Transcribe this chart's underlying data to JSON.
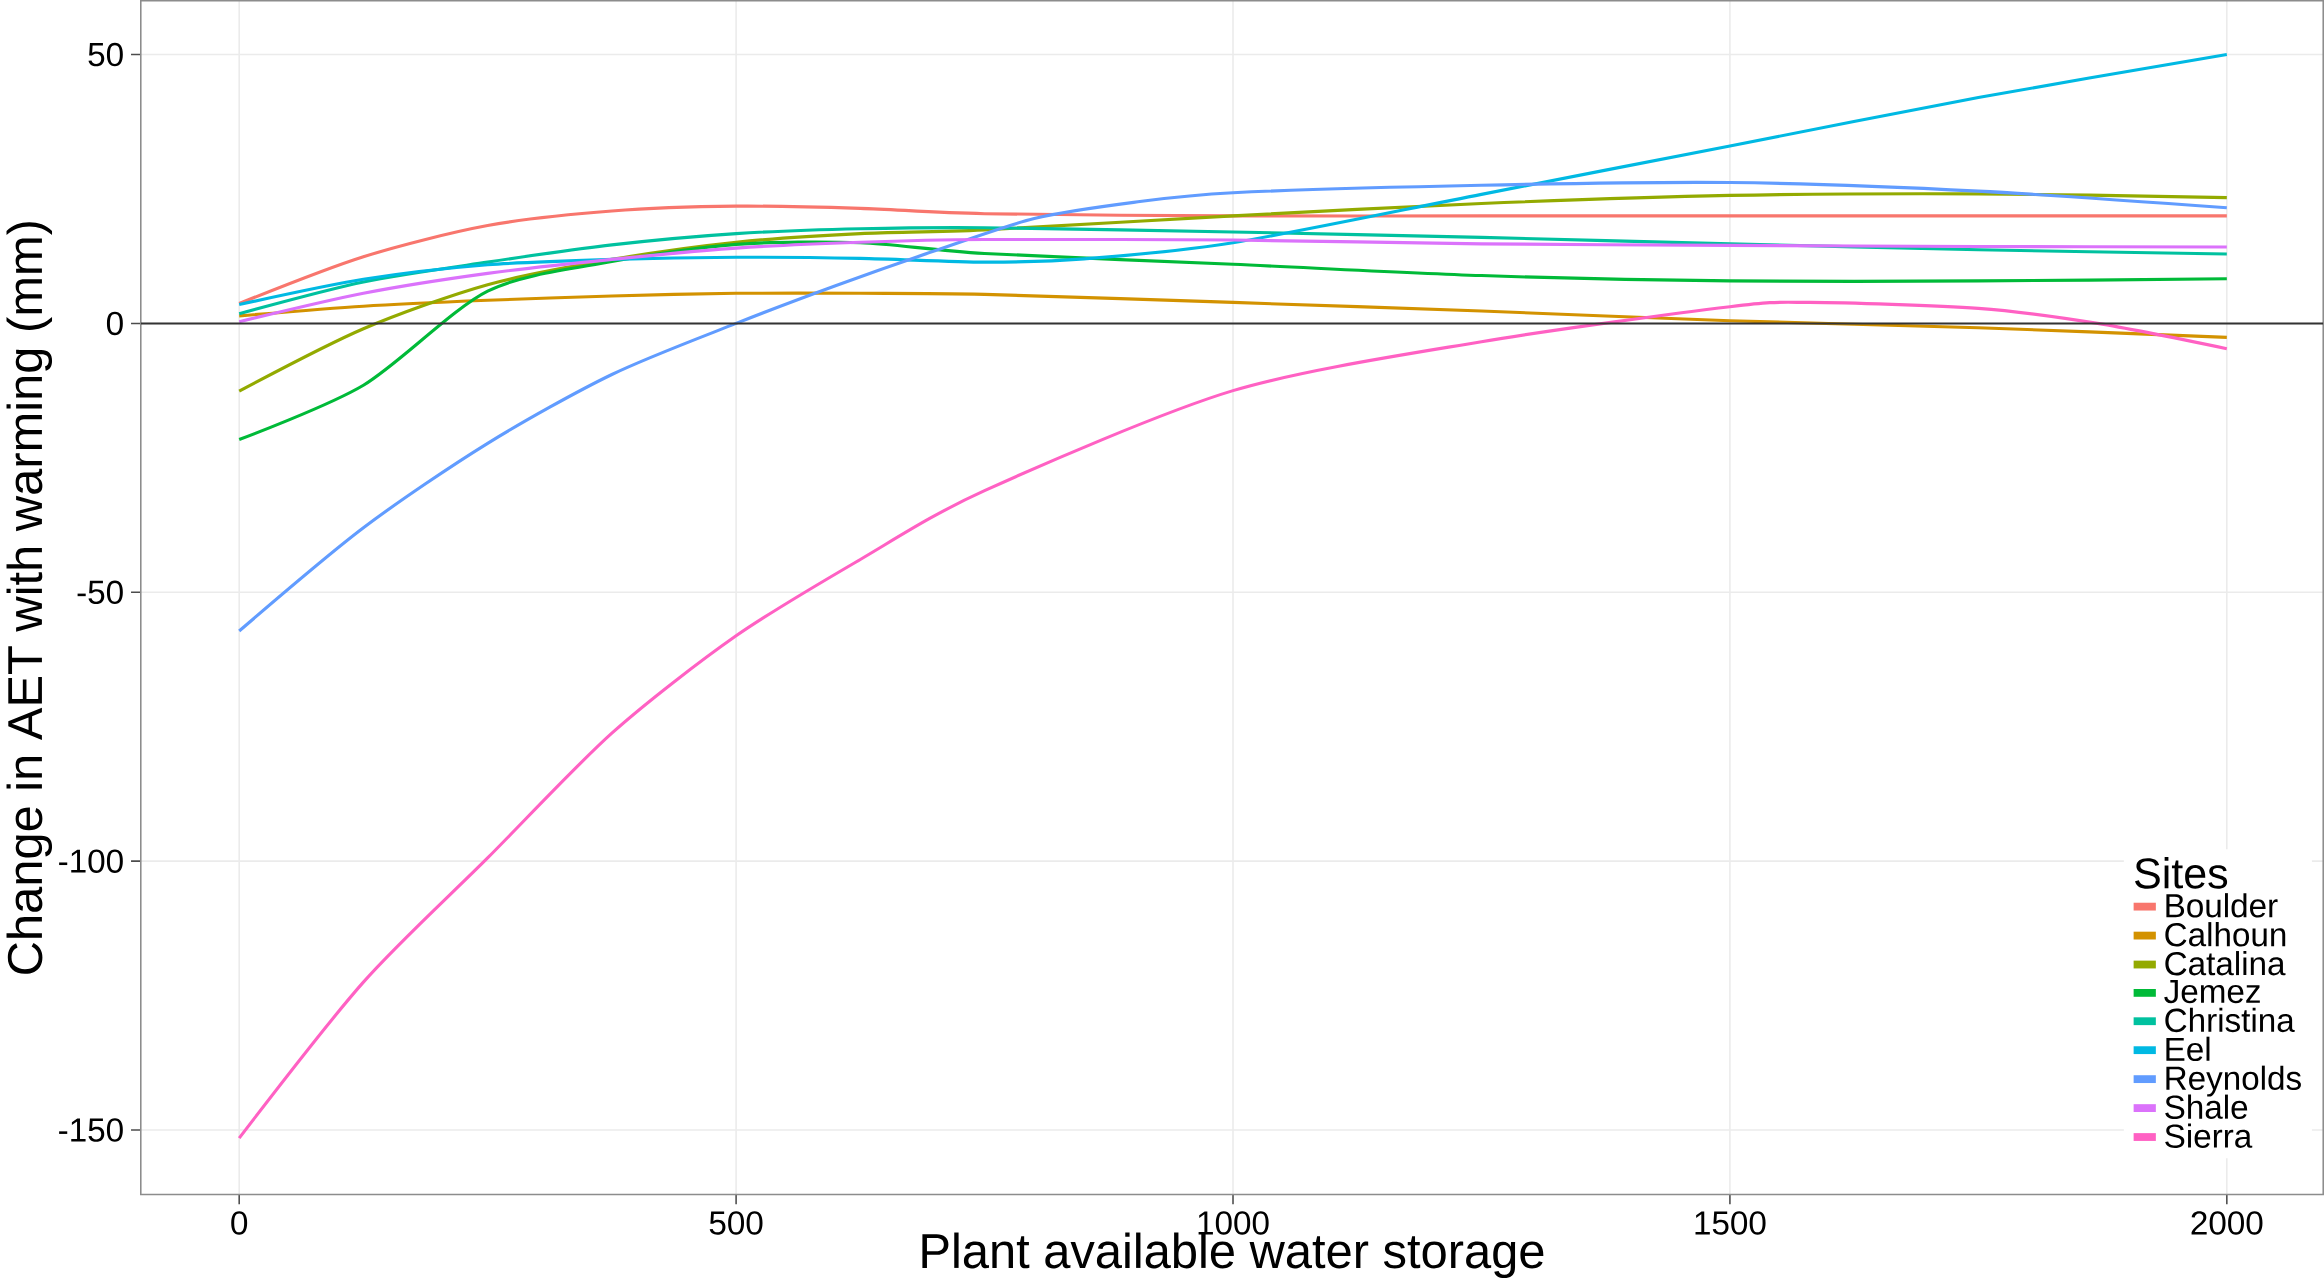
{
  "chart_data": {
    "type": "line",
    "xlabel": "Plant available water storage",
    "ylabel": "Change in AET with warming (mm)",
    "legend_title": "Sites",
    "xlim": [
      -99,
      2097
    ],
    "ylim": [
      -162,
      60
    ],
    "xticks": [
      0,
      500,
      1000,
      1500,
      2000
    ],
    "yticks": [
      -150,
      -100,
      -50,
      0,
      50
    ],
    "grid": true,
    "legend": "bottom right",
    "marker": "none",
    "line_style": "solid",
    "ref_lines": [
      {
        "axis": "y",
        "value": 0,
        "color": "#333333"
      }
    ],
    "series": [
      {
        "name": "Boulder",
        "color": "#F8766D",
        "x": [
          0,
          125,
          250,
          375,
          500,
          625,
          750,
          1000,
          1250,
          1500,
          1750,
          2000
        ],
        "values": [
          3.7,
          12.4,
          18.2,
          20.9,
          21.8,
          21.4,
          20.4,
          20,
          20,
          20,
          20,
          20
        ]
      },
      {
        "name": "Calhoun",
        "color": "#D39200",
        "x": [
          0,
          125,
          250,
          375,
          500,
          625,
          750,
          1000,
          1250,
          1500,
          1750,
          2000
        ],
        "values": [
          1.4,
          3.2,
          4.3,
          5.1,
          5.6,
          5.6,
          5.4,
          3.9,
          2.3,
          0.5,
          -0.8,
          -2.6
        ]
      },
      {
        "name": "Catalina",
        "color": "#93AA00",
        "x": [
          0,
          125,
          250,
          375,
          500,
          625,
          750,
          1000,
          1250,
          1500,
          1750,
          2000
        ],
        "values": [
          -12.6,
          -1,
          7.2,
          11.9,
          15.1,
          16.7,
          17.4,
          20,
          22.3,
          23.8,
          24.1,
          23.4
        ]
      },
      {
        "name": "Jemez",
        "color": "#00BA38",
        "x": [
          0,
          125,
          250,
          375,
          500,
          625,
          750,
          1000,
          1250,
          1500,
          1750,
          2000
        ],
        "values": [
          -21.6,
          -11.5,
          6,
          11.5,
          14.7,
          15,
          13,
          11,
          8.9,
          7.9,
          7.9,
          8.3
        ]
      },
      {
        "name": "Christina",
        "color": "#00C19F",
        "x": [
          0,
          125,
          250,
          375,
          500,
          625,
          750,
          1000,
          1250,
          1500,
          1750,
          2000
        ],
        "values": [
          1.8,
          7.7,
          11.4,
          14.6,
          16.7,
          17.6,
          17.8,
          17,
          16,
          14.8,
          13.7,
          12.9
        ]
      },
      {
        "name": "Eel",
        "color": "#00B9E3",
        "x": [
          0,
          125,
          250,
          375,
          500,
          625,
          750,
          850,
          1000,
          1250,
          1500,
          1750,
          2000
        ],
        "values": [
          3.5,
          8.2,
          10.9,
          11.9,
          12.3,
          12.1,
          11.4,
          12,
          15,
          24,
          33,
          42,
          50
        ]
      },
      {
        "name": "Reynolds",
        "color": "#619CFF",
        "x": [
          0,
          125,
          250,
          375,
          500,
          600,
          700,
          800,
          900,
          1000,
          1250,
          1500,
          1750,
          2000
        ],
        "values": [
          -57.2,
          -38,
          -22.3,
          -9.5,
          0,
          7,
          13.5,
          19.5,
          22.5,
          24.3,
          25.7,
          26.2,
          24.6,
          21.5
        ]
      },
      {
        "name": "Shale",
        "color": "#DB72FB",
        "x": [
          0,
          125,
          250,
          375,
          500,
          625,
          750,
          1000,
          1250,
          1500,
          1750,
          2000
        ],
        "values": [
          0.3,
          5.6,
          9.3,
          11.9,
          14,
          15.1,
          15.6,
          15.5,
          14.8,
          14.5,
          14.3,
          14.2
        ]
      },
      {
        "name": "Sierra",
        "color": "#FF61C3",
        "x": [
          0,
          125,
          250,
          375,
          500,
          625,
          750,
          1000,
          1250,
          1500,
          1580,
          1750,
          1870,
          2000
        ],
        "values": [
          -151.5,
          -122.5,
          -99.4,
          -76.2,
          -58.1,
          -43.9,
          -31.1,
          -12.5,
          -3.4,
          3.1,
          3.9,
          2.8,
          0,
          -4.7
        ]
      }
    ]
  }
}
